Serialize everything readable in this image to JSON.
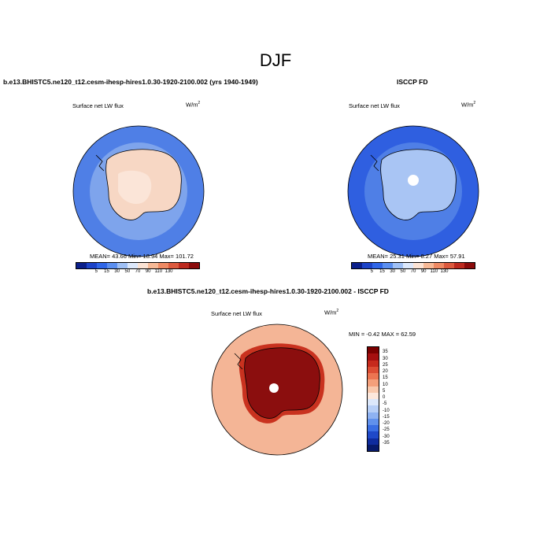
{
  "title": "DJF",
  "panels": {
    "model": {
      "heading": "b.e13.BHISTC5.ne120_t12.cesm-ihesp-hires1.0.30-1920-2100.002 (yrs 1940-1949)",
      "variable": "Surface net LW flux",
      "units_base": "W/m",
      "units_exp": "2",
      "stats": "MEAN= 43.66 Min= 18.94 Max= 101.72"
    },
    "obs": {
      "heading": "ISCCP FD",
      "variable": "Surface net LW flux",
      "units_base": "W/m",
      "units_exp": "2",
      "stats": "MEAN= 25.31 Min= 8.27 Max= 57.91"
    },
    "diff": {
      "heading": "b.e13.BHISTC5.ne120_t12.cesm-ihesp-hires1.0.30-1920-2100.002 - ISCCP FD",
      "variable": "Surface net LW flux",
      "units_base": "W/m",
      "units_exp": "2",
      "stats": "MIN = -0.42 MAX = 62.59"
    }
  },
  "colorbars": {
    "abs_levels": [
      "5",
      "15",
      "30",
      "50",
      "70",
      "90",
      "110",
      "130"
    ],
    "abs_colors": [
      "#0b1f8a",
      "#1c43c8",
      "#2f66e8",
      "#5b8ff0",
      "#9fc0f5",
      "#dce8fb",
      "#fbe3d4",
      "#f6b996",
      "#ee8a64",
      "#dc5a3e",
      "#bd2a1f",
      "#8b0b0b"
    ],
    "diff_levels": [
      "35",
      "30",
      "25",
      "20",
      "15",
      "10",
      "5",
      "0",
      "-5",
      "-10",
      "-15",
      "-20",
      "-25",
      "-30",
      "-35"
    ],
    "diff_colors": [
      "#7a0000",
      "#a50f0f",
      "#c62a1c",
      "#dc4d33",
      "#ec7551",
      "#f4a07b",
      "#f9c9ad",
      "#fde8dc",
      "#dce8fb",
      "#b7cff7",
      "#8eb2f2",
      "#6191ec",
      "#3a6ee3",
      "#1f49c8",
      "#0f2c9e",
      "#071a6b"
    ]
  },
  "map_colors": {
    "ocean_a": "#4f7fe6",
    "ocean_b": "#7ea4ec",
    "land_a": "#f7d7c4",
    "land_b": "#fbe5d8",
    "obs_ocean": "#2f5fe0",
    "obs_land": "#a9c5f4",
    "obs_hole": "#ffffff",
    "diff_ocean": "#f4b596",
    "diff_land": "#8b0e0e",
    "diff_edge": "#c9321f"
  }
}
